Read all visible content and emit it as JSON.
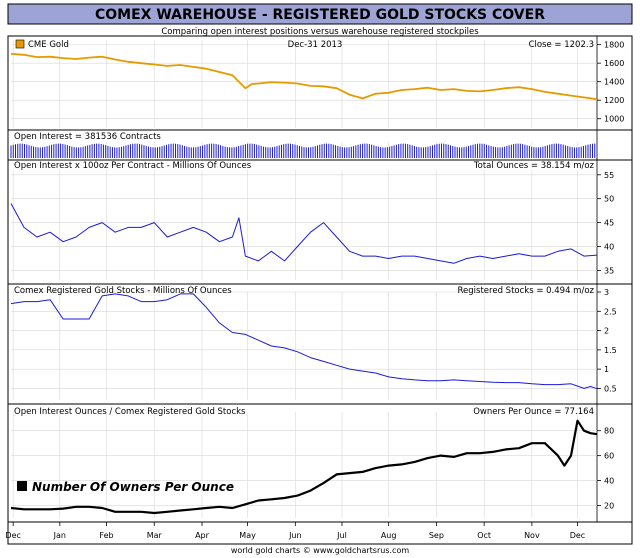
{
  "title": "COMEX WAREHOUSE - REGISTERED GOLD STOCKS COVER",
  "subtitle": "Comparing open interest positions versus warehouse registered stockpiles",
  "footer": "world gold charts © www.goldchartsrus.com",
  "x_labels": [
    "Dec",
    "Jan",
    "Feb",
    "Mar",
    "Apr",
    "May",
    "Jun",
    "Jul",
    "Aug",
    "Sep",
    "Oct",
    "Nov",
    "Dec"
  ],
  "colors": {
    "gold": "#e69a00",
    "blue": "#1a1adc",
    "black": "#000000",
    "title_bg": "#9ea3d6",
    "panel_bg": "#ffffff",
    "grid": "#cfcfcf"
  },
  "chart_data": [
    {
      "type": "line",
      "id": "gold",
      "legend": "CME Gold",
      "header_center": "Dec-31 2013",
      "header_right": "Close = 1202.3",
      "ylim": [
        900,
        1850
      ],
      "yticks": [
        1000,
        1200,
        1400,
        1600,
        1800
      ],
      "color": "#e69a00",
      "x": [
        0,
        8,
        16,
        24,
        32,
        40,
        48,
        56,
        64,
        72,
        80,
        88,
        96,
        104,
        112,
        120,
        128,
        136,
        144,
        148,
        152,
        160,
        168,
        176,
        184,
        192,
        200,
        208,
        216,
        224,
        232,
        240,
        248,
        256,
        264,
        272,
        280,
        288,
        296,
        304,
        312,
        320,
        328,
        336,
        344,
        352,
        360
      ],
      "values": [
        1700,
        1690,
        1665,
        1670,
        1655,
        1645,
        1660,
        1670,
        1640,
        1615,
        1600,
        1585,
        1570,
        1580,
        1560,
        1540,
        1505,
        1470,
        1330,
        1375,
        1380,
        1395,
        1390,
        1380,
        1355,
        1350,
        1330,
        1260,
        1220,
        1270,
        1280,
        1310,
        1320,
        1335,
        1310,
        1320,
        1300,
        1295,
        1310,
        1330,
        1340,
        1320,
        1290,
        1270,
        1250,
        1230,
        1210
      ]
    },
    {
      "type": "bar",
      "id": "open_interest",
      "header_left": "Open Interest = 381536 Contracts",
      "color": "#1a1adc"
    },
    {
      "type": "line",
      "id": "oi_ounces",
      "header_left": "Open Interest x 100oz Per Contract - Millions Of Ounces",
      "header_right": "Total Ounces = 38.154 m/oz",
      "ylim": [
        33,
        56
      ],
      "yticks": [
        35,
        40,
        45,
        50,
        55
      ],
      "color": "#1a1adc",
      "x": [
        0,
        8,
        16,
        24,
        32,
        40,
        48,
        56,
        64,
        72,
        80,
        88,
        96,
        104,
        112,
        120,
        128,
        136,
        140,
        144,
        152,
        160,
        168,
        176,
        184,
        192,
        200,
        208,
        216,
        224,
        232,
        240,
        248,
        256,
        264,
        272,
        280,
        288,
        296,
        304,
        312,
        320,
        328,
        336,
        344,
        352,
        360
      ],
      "values": [
        49,
        44,
        42,
        43,
        41,
        42,
        44,
        45,
        43,
        44,
        44,
        45,
        42,
        43,
        44,
        43,
        41,
        42,
        46,
        38,
        37,
        39,
        37,
        40,
        43,
        45,
        42,
        39,
        38,
        38,
        37.5,
        38,
        38,
        37.5,
        37,
        36.5,
        37.5,
        38,
        37.5,
        38,
        38.5,
        38,
        38,
        39,
        39.5,
        38,
        38.2
      ]
    },
    {
      "type": "line",
      "id": "registered",
      "header_left": "Comex Registered Gold Stocks - Millions Of Ounces",
      "header_right": "Registered Stocks = 0.494 m/oz",
      "ylim": [
        0.2,
        3.0
      ],
      "yticks": [
        0.5,
        1,
        1.5,
        2,
        2.5,
        3
      ],
      "color": "#1a1adc",
      "x": [
        0,
        8,
        16,
        24,
        32,
        40,
        48,
        56,
        64,
        72,
        80,
        88,
        96,
        104,
        112,
        120,
        128,
        136,
        144,
        152,
        160,
        168,
        176,
        184,
        192,
        200,
        208,
        216,
        224,
        232,
        240,
        248,
        256,
        264,
        272,
        280,
        288,
        296,
        304,
        312,
        320,
        328,
        336,
        344,
        352,
        356,
        360
      ],
      "values": [
        2.7,
        2.75,
        2.75,
        2.8,
        2.3,
        2.3,
        2.3,
        2.9,
        2.95,
        2.9,
        2.75,
        2.75,
        2.8,
        2.95,
        2.95,
        2.6,
        2.2,
        1.95,
        1.9,
        1.75,
        1.6,
        1.55,
        1.45,
        1.3,
        1.2,
        1.1,
        1.0,
        0.95,
        0.9,
        0.8,
        0.75,
        0.72,
        0.7,
        0.7,
        0.72,
        0.7,
        0.68,
        0.66,
        0.65,
        0.65,
        0.62,
        0.6,
        0.6,
        0.62,
        0.5,
        0.55,
        0.494
      ]
    },
    {
      "type": "line",
      "id": "owners",
      "header_left": "Open Interest Ounces / Comex Registered Gold Stocks",
      "header_right": "Owners Per Ounce = 77.164",
      "legend_big": "Number Of Owners Per Ounce",
      "ylim": [
        10,
        95
      ],
      "yticks": [
        20,
        40,
        60,
        80
      ],
      "color": "#000000",
      "x": [
        0,
        8,
        16,
        24,
        32,
        40,
        48,
        56,
        64,
        72,
        80,
        88,
        96,
        104,
        112,
        120,
        128,
        136,
        144,
        152,
        160,
        168,
        176,
        184,
        192,
        200,
        208,
        216,
        224,
        232,
        240,
        248,
        256,
        264,
        272,
        280,
        288,
        296,
        304,
        312,
        320,
        328,
        336,
        340,
        344,
        348,
        352,
        356,
        360
      ],
      "values": [
        18,
        17,
        17,
        17,
        17.5,
        19,
        19,
        18,
        15,
        15,
        15,
        14,
        15,
        16,
        17,
        18,
        19,
        18,
        21,
        24,
        25,
        26,
        28,
        32,
        38,
        45,
        46,
        47,
        50,
        52,
        53,
        55,
        58,
        60,
        59,
        62,
        62,
        63,
        65,
        66,
        70,
        70,
        60,
        52,
        60,
        88,
        80,
        78,
        77.164
      ]
    }
  ]
}
